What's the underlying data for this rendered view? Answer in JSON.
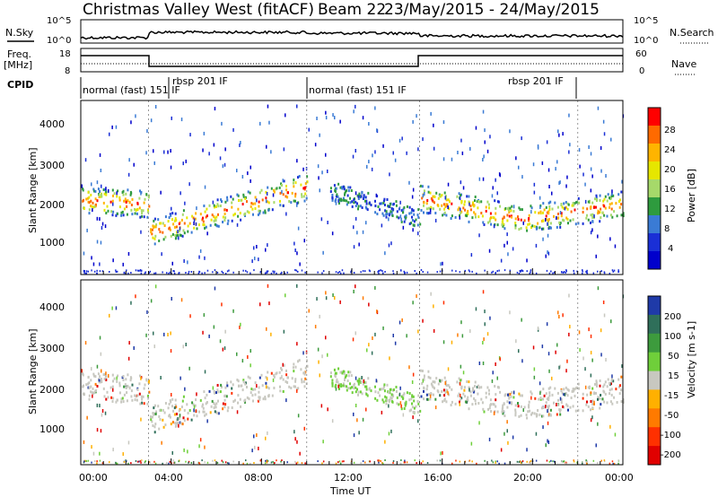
{
  "title": {
    "radar": "Christmas Valley West (fitACF)",
    "beam": "Beam 22",
    "dates": "23/May/2015 - 24/May/2015"
  },
  "strips": {
    "nsky_label": "N.Sky",
    "nsky_ticks": [
      "10^5",
      "10^0"
    ],
    "nsearch_label": "N.Search",
    "nsearch_ticks": [
      "10^5",
      "10^0"
    ],
    "freq_label": "Freq.",
    "freq_unit": "[MHz]",
    "freq_ticks": [
      "18",
      "8"
    ],
    "nave_label": "Nave",
    "nave_ticks": [
      "60",
      "0"
    ],
    "cpid_label": "CPID",
    "cpid_segments": [
      "normal (fast) 151 IF",
      "rbsp 201 IF",
      "normal (fast) 151 IF",
      "rbsp 201 IF"
    ]
  },
  "axes": {
    "xlabel": "Time UT",
    "ylabel_top": "Slant Range [km]",
    "ylabel_bottom": "Slant Range [km]",
    "x_ticks": [
      "00:00",
      "04:00",
      "08:00",
      "12:00",
      "16:00",
      "20:00",
      "00:00"
    ],
    "y_ticks": [
      "1000",
      "2000",
      "3000",
      "4000"
    ]
  },
  "colorbars": {
    "power": {
      "label": "Power [dB]",
      "ticks": [
        "28",
        "24",
        "20",
        "16",
        "12",
        "8",
        "4"
      ],
      "colors": [
        "#ff0000",
        "#ff6a00",
        "#ffb400",
        "#e6e600",
        "#a6d96a",
        "#2e9b3e",
        "#3a7bd5",
        "#1a2fd6",
        "#0000cc"
      ]
    },
    "velocity": {
      "label": "Velocity [m s-1]",
      "ticks": [
        "200",
        "100",
        "50",
        "15",
        "-15",
        "-50",
        "-100",
        "-200"
      ],
      "colors": [
        "#1f3aa8",
        "#2f6f5a",
        "#3d9b3d",
        "#6fcf3a",
        "#c8c8c0",
        "#ffb000",
        "#ff7a00",
        "#ff3000",
        "#e00000"
      ]
    }
  },
  "chart_data": [
    {
      "type": "heatmap",
      "title": "Power",
      "xlabel": "Time UT",
      "ylabel": "Slant Range [km]",
      "xlim": [
        0,
        24
      ],
      "ylim": [
        0,
        4500
      ],
      "colorbar": "Power [dB]",
      "bands": [
        {
          "x": [
            0,
            3
          ],
          "y": [
            1950,
            1850
          ],
          "level": "high"
        },
        {
          "x": [
            3,
            10
          ],
          "y": [
            1100,
            2300
          ],
          "level": "high"
        },
        {
          "x": [
            15,
            19.5
          ],
          "y": [
            2000,
            1450
          ],
          "level": "high"
        },
        {
          "x": [
            19.5,
            24
          ],
          "y": [
            1450,
            1850
          ],
          "level": "high"
        }
      ]
    },
    {
      "type": "heatmap",
      "title": "Velocity",
      "xlabel": "Time UT",
      "ylabel": "Slant Range [km]",
      "xlim": [
        0,
        24
      ],
      "ylim": [
        0,
        4500
      ],
      "colorbar": "Velocity [m s-1]",
      "bands": [
        {
          "x": [
            0,
            3
          ],
          "y": [
            1950,
            1850
          ],
          "level": "near zero"
        },
        {
          "x": [
            3,
            10
          ],
          "y": [
            1100,
            2300
          ],
          "level": "near zero"
        },
        {
          "x": [
            15,
            24
          ],
          "y": [
            2000,
            1600
          ],
          "level": "near zero"
        }
      ]
    }
  ]
}
